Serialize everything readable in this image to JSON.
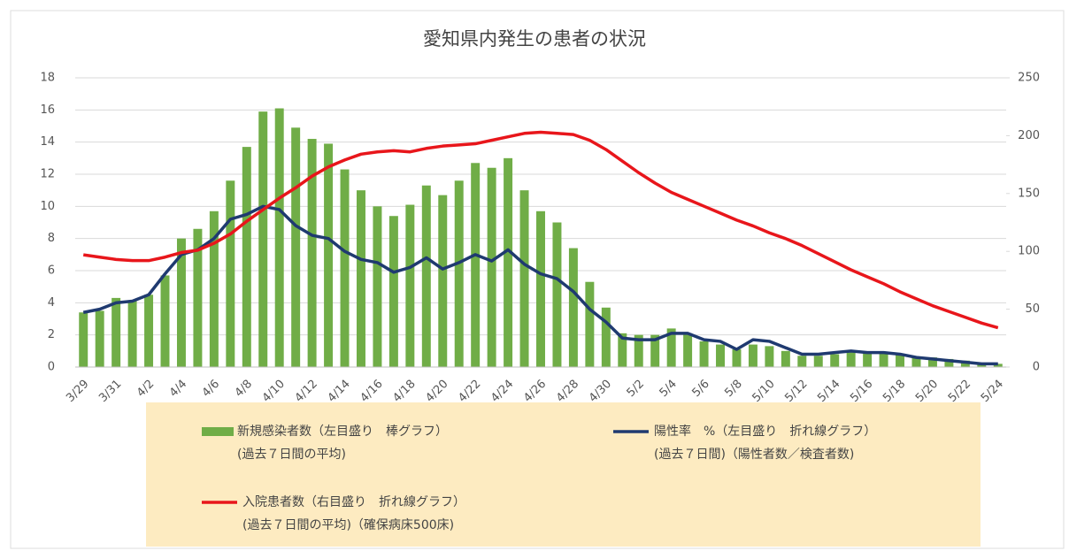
{
  "chart_data": {
    "type": "bar-line",
    "title": "愛知県内発生の患者の状況",
    "categories": [
      "3/29",
      null,
      "3/31",
      null,
      "4/2",
      null,
      "4/4",
      null,
      "4/6",
      null,
      "4/8",
      null,
      "4/10",
      null,
      "4/12",
      null,
      "4/14",
      null,
      "4/16",
      null,
      "4/18",
      null,
      "4/20",
      null,
      "4/22",
      null,
      "4/24",
      null,
      "4/26",
      null,
      "4/28",
      null,
      "4/30",
      null,
      "5/2",
      null,
      "5/4",
      null,
      "5/6",
      null,
      "5/8",
      null,
      "5/10",
      null,
      "5/12",
      null,
      "5/14",
      null,
      "5/16",
      null,
      "5/18",
      null,
      "5/20",
      null,
      "5/22",
      null,
      "5/24"
    ],
    "ylim": [
      0,
      18
    ],
    "yticks": [
      0,
      2,
      4,
      6,
      8,
      10,
      12,
      14,
      16,
      18
    ],
    "y2lim": [
      0,
      250
    ],
    "y2ticks": [
      0,
      50,
      100,
      150,
      200,
      250
    ],
    "grid": true,
    "series": [
      {
        "name": "新規感染者数（左目盛り　棒グラフ）",
        "note": "(過去７日間の平均)",
        "type": "bar",
        "color": "#70ad47",
        "values": [
          3.4,
          3.5,
          4.3,
          4.1,
          4.5,
          5.7,
          8.0,
          8.6,
          9.7,
          11.6,
          13.7,
          15.9,
          16.1,
          14.9,
          14.2,
          13.9,
          12.3,
          11.0,
          10.0,
          9.4,
          10.1,
          11.3,
          10.7,
          11.6,
          12.7,
          12.4,
          13.0,
          11.0,
          9.7,
          9.0,
          7.4,
          5.3,
          3.7,
          2.1,
          2.0,
          2.0,
          2.4,
          2.1,
          1.6,
          1.4,
          1.1,
          1.4,
          1.3,
          1.0,
          0.7,
          0.7,
          0.8,
          1.0,
          0.9,
          0.9,
          0.8,
          0.6,
          0.6,
          0.5,
          0.4,
          0.2,
          0.2
        ]
      },
      {
        "name": "陽性率　%（左目盛り　折れ線グラフ）",
        "note": "(過去７日間)（陽性者数／検査者数)",
        "type": "line",
        "color": "#1f3a70",
        "values": [
          3.4,
          3.6,
          4.0,
          4.1,
          4.5,
          5.8,
          7.0,
          7.3,
          8.0,
          9.2,
          9.5,
          10.0,
          9.8,
          8.8,
          8.2,
          8.0,
          7.2,
          6.7,
          6.5,
          5.9,
          6.2,
          6.8,
          6.1,
          6.5,
          7.0,
          6.6,
          7.3,
          6.4,
          5.8,
          5.5,
          4.7,
          3.6,
          2.8,
          1.8,
          1.7,
          1.7,
          2.1,
          2.1,
          1.7,
          1.6,
          1.1,
          1.7,
          1.6,
          1.2,
          0.8,
          0.8,
          0.9,
          1.0,
          0.9,
          0.9,
          0.8,
          0.6,
          0.5,
          0.4,
          0.3,
          0.2,
          0.2
        ]
      },
      {
        "name": "入院患者数（右目盛り　折れ線グラフ）",
        "note": "(過去７日間の平均)（確保病床500床)",
        "type": "line",
        "axis": "y2",
        "color": "#e8161b",
        "values": [
          97,
          95,
          93,
          92,
          92,
          95,
          99,
          101,
          107,
          115,
          126,
          136,
          146,
          155,
          165,
          173,
          179,
          184,
          186,
          187,
          186,
          189,
          191,
          192,
          193,
          196,
          199,
          202,
          203,
          202,
          201,
          196,
          188,
          178,
          168,
          159,
          151,
          145,
          139,
          133,
          127,
          122,
          116,
          111,
          105,
          98,
          91,
          84,
          78,
          72,
          65,
          59,
          53,
          48,
          43,
          38,
          34
        ]
      }
    ]
  }
}
